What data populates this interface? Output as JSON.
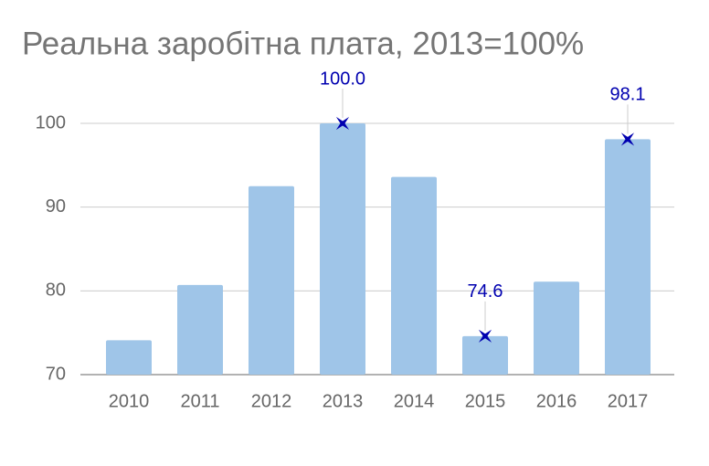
{
  "chart_data": {
    "type": "bar",
    "title": "Реальна заробітна плата, 2013=100%",
    "categories": [
      "2010",
      "2011",
      "2012",
      "2013",
      "2014",
      "2015",
      "2016",
      "2017"
    ],
    "values": [
      74.1,
      80.7,
      92.5,
      100,
      93.6,
      74.6,
      81.1,
      98.1
    ],
    "value_labels": [
      null,
      null,
      null,
      "100.0",
      null,
      "74.6",
      null,
      "98.1"
    ],
    "color": "#9fc5e8",
    "label_color": "#0000b0",
    "ylim": [
      70,
      100
    ],
    "yticks": [
      70,
      80,
      90,
      100
    ],
    "grid": true
  }
}
